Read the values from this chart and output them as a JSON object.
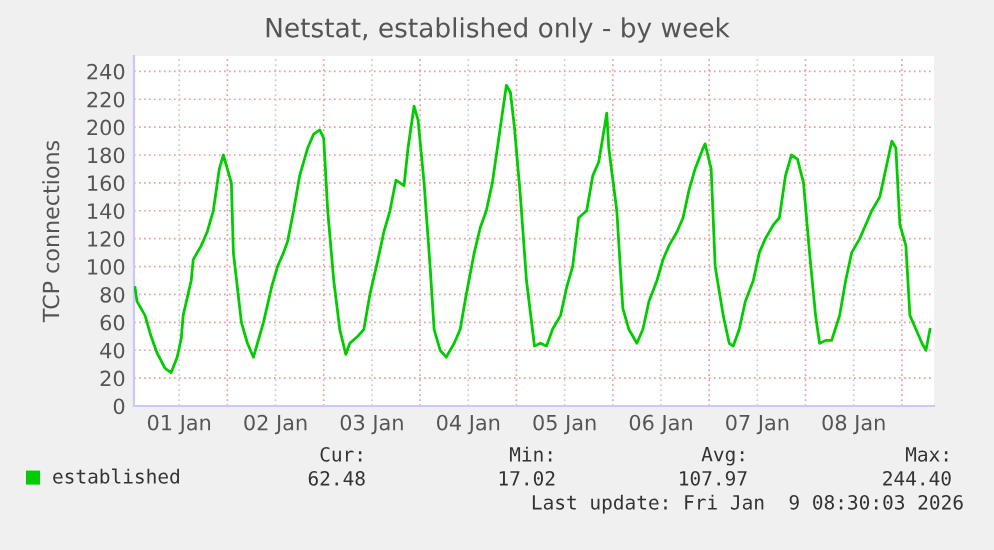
{
  "chart_data": {
    "type": "line",
    "title": "Netstat, established only - by week",
    "ylabel": "TCP connections",
    "x": [
      "2026-01-01T01:00",
      "2026-01-01T01:30",
      "2026-01-01T03:30",
      "2026-01-01T05:00",
      "2026-01-01T06:30",
      "2026-01-01T08:30",
      "2026-01-01T10:00",
      "2026-01-01T11:30",
      "2026-01-01T12:30",
      "2026-01-01T13:00",
      "2026-01-01T15:00",
      "2026-01-01T15:30",
      "2026-01-01T17:30",
      "2026-01-01T19:00",
      "2026-01-01T20:30",
      "2026-01-01T22:00",
      "2026-01-01T23:00",
      "2026-01-02T00:00",
      "2026-01-02T01:00",
      "2026-01-02T01:30",
      "2026-01-02T03:30",
      "2026-01-02T05:00",
      "2026-01-02T06:30",
      "2026-01-02T07:30",
      "2026-01-02T09:00",
      "2026-01-02T11:00",
      "2026-01-02T12:30",
      "2026-01-02T14:00",
      "2026-01-02T15:00",
      "2026-01-02T16:30",
      "2026-01-02T18:00",
      "2026-01-02T20:00",
      "2026-01-02T21:30",
      "2026-01-02T23:00",
      "2026-01-03T00:00",
      "2026-01-03T01:00",
      "2026-01-03T02:30",
      "2026-01-03T04:00",
      "2026-01-03T05:30",
      "2026-01-03T06:30",
      "2026-01-03T08:30",
      "2026-01-03T10:00",
      "2026-01-03T11:30",
      "2026-01-03T13:30",
      "2026-01-03T15:00",
      "2026-01-03T16:30",
      "2026-01-03T18:00",
      "2026-01-03T20:00",
      "2026-01-03T21:00",
      "2026-01-03T22:30",
      "2026-01-03T23:30",
      "2026-01-04T01:00",
      "2026-01-04T02:30",
      "2026-01-04T03:30",
      "2026-01-04T05:00",
      "2026-01-04T06:30",
      "2026-01-04T08:30",
      "2026-01-04T10:00",
      "2026-01-04T11:30",
      "2026-01-04T13:30",
      "2026-01-04T15:00",
      "2026-01-04T16:30",
      "2026-01-04T18:00",
      "2026-01-04T20:00",
      "2026-01-04T21:30",
      "2026-01-04T22:30",
      "2026-01-04T23:30",
      "2026-01-05T01:00",
      "2026-01-05T02:30",
      "2026-01-05T04:30",
      "2026-01-05T06:00",
      "2026-01-05T07:30",
      "2026-01-05T09:00",
      "2026-01-05T11:00",
      "2026-01-05T12:30",
      "2026-01-05T14:00",
      "2026-01-05T15:30",
      "2026-01-05T17:30",
      "2026-01-05T19:00",
      "2026-01-05T20:30",
      "2026-01-05T22:30",
      "2026-01-05T23:00",
      "2026-01-06T01:00",
      "2026-01-06T02:30",
      "2026-01-06T04:00",
      "2026-01-06T06:00",
      "2026-01-06T07:30",
      "2026-01-06T09:00",
      "2026-01-06T11:00",
      "2026-01-06T12:30",
      "2026-01-06T14:00",
      "2026-01-06T16:00",
      "2026-01-06T17:30",
      "2026-01-06T19:00",
      "2026-01-06T20:30",
      "2026-01-06T22:30",
      "2026-01-06T23:00",
      "2026-01-07T00:30",
      "2026-01-07T01:30",
      "2026-01-07T03:30",
      "2026-01-07T05:00",
      "2026-01-07T06:00",
      "2026-01-07T07:30",
      "2026-01-07T09:00",
      "2026-01-07T11:00",
      "2026-01-07T12:30",
      "2026-01-07T14:00",
      "2026-01-07T16:00",
      "2026-01-07T17:30",
      "2026-01-07T19:00",
      "2026-01-07T20:30",
      "2026-01-07T22:00",
      "2026-01-07T23:30",
      "2026-01-08T01:00",
      "2026-01-08T02:30",
      "2026-01-08T03:30",
      "2026-01-08T05:00",
      "2026-01-08T06:30",
      "2026-01-08T08:30",
      "2026-01-08T10:00",
      "2026-01-08T11:30",
      "2026-01-08T13:30",
      "2026-01-08T15:00",
      "2026-01-08T16:30",
      "2026-01-08T18:30",
      "2026-01-08T20:00",
      "2026-01-08T21:30",
      "2026-01-08T22:30",
      "2026-01-08T23:30",
      "2026-01-09T01:00",
      "2026-01-09T02:00",
      "2026-01-09T03:30",
      "2026-01-09T05:00",
      "2026-01-09T06:00",
      "2026-01-09T07:00"
    ],
    "series": [
      {
        "name": "established",
        "color": "#00cc00",
        "values": [
          85,
          75,
          65,
          50,
          38,
          27,
          24,
          35,
          48,
          65,
          90,
          105,
          115,
          125,
          140,
          170,
          180,
          170,
          160,
          110,
          60,
          45,
          35,
          45,
          60,
          85,
          100,
          110,
          118,
          140,
          165,
          185,
          195,
          198,
          192,
          140,
          90,
          55,
          37,
          45,
          50,
          55,
          80,
          105,
          125,
          140,
          162,
          158,
          185,
          215,
          205,
          160,
          100,
          55,
          40,
          35,
          45,
          55,
          80,
          110,
          128,
          140,
          160,
          200,
          230,
          225,
          200,
          150,
          90,
          43,
          45,
          43,
          55,
          65,
          85,
          100,
          135,
          140,
          165,
          175,
          210,
          185,
          140,
          70,
          55,
          45,
          55,
          75,
          90,
          105,
          115,
          125,
          135,
          155,
          170,
          185,
          188,
          170,
          100,
          65,
          45,
          43,
          55,
          75,
          90,
          110,
          120,
          130,
          135,
          165,
          180,
          177,
          160,
          110,
          65,
          45,
          47,
          47,
          65,
          90,
          110,
          120,
          130,
          140,
          150,
          170,
          190,
          185,
          130,
          115,
          65,
          55,
          45,
          40,
          55
        ]
      }
    ],
    "xlim": [
      "2026-01-01T00:45",
      "2026-01-09T08:00"
    ],
    "xticks": [
      {
        "value": "2026-01-01T12:00",
        "label": "01 Jan"
      },
      {
        "value": "2026-01-02T00:00",
        "label": null
      },
      {
        "value": "2026-01-02T12:00",
        "label": "02 Jan"
      },
      {
        "value": "2026-01-03T00:00",
        "label": null
      },
      {
        "value": "2026-01-03T12:00",
        "label": "03 Jan"
      },
      {
        "value": "2026-01-04T00:00",
        "label": null
      },
      {
        "value": "2026-01-04T12:00",
        "label": "04 Jan"
      },
      {
        "value": "2026-01-05T00:00",
        "label": null
      },
      {
        "value": "2026-01-05T12:00",
        "label": "05 Jan"
      },
      {
        "value": "2026-01-06T00:00",
        "label": null
      },
      {
        "value": "2026-01-06T12:00",
        "label": "06 Jan"
      },
      {
        "value": "2026-01-07T00:00",
        "label": null
      },
      {
        "value": "2026-01-07T12:00",
        "label": "07 Jan"
      },
      {
        "value": "2026-01-08T00:00",
        "label": null
      },
      {
        "value": "2026-01-08T12:00",
        "label": "08 Jan"
      },
      {
        "value": "2026-01-09T00:00",
        "label": null
      }
    ],
    "ylim": [
      0,
      251
    ],
    "yticks": [
      0,
      20,
      40,
      60,
      80,
      100,
      120,
      140,
      160,
      180,
      200,
      220,
      240
    ],
    "grid": true,
    "legend": "bottom",
    "line_style": "solid",
    "marker": "none",
    "annotations": [
      "Cur:",
      "Min:",
      "Avg:",
      "Max:",
      "62.48",
      "17.02",
      "107.97",
      "244.40",
      "Last update: Fri Jan  9 08:30:03 2026"
    ]
  }
}
